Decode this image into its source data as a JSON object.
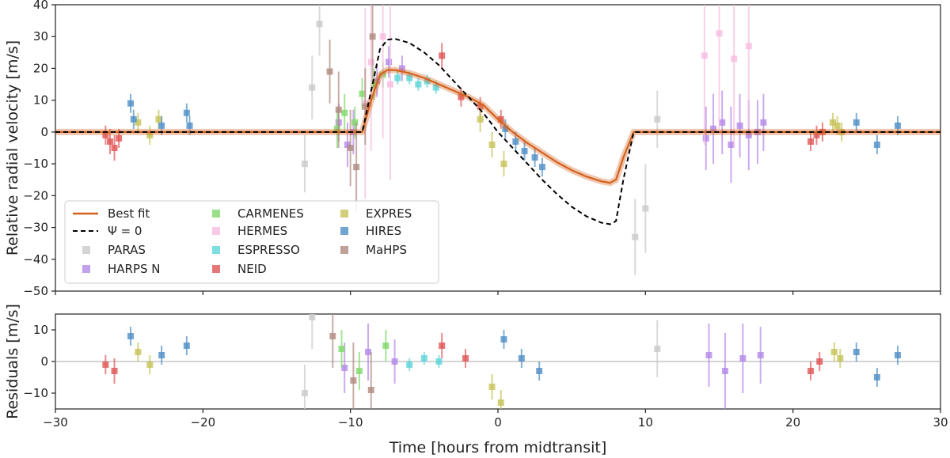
{
  "chart_data": {
    "type": "scatter",
    "xlabel": "Time [hours from midtransit]",
    "xlim": [
      -30,
      30
    ],
    "xticks": [
      -30,
      -20,
      -10,
      0,
      10,
      20,
      30
    ],
    "panels": [
      {
        "name": "main",
        "ylabel": "Relative radial velocity [m/s]",
        "ylim": [
          -50,
          40
        ],
        "yticks": [
          -50,
          -40,
          -30,
          -20,
          -10,
          0,
          10,
          20,
          30,
          40
        ],
        "series": [
          {
            "name": "PARAS",
            "color": "#c9c9c9",
            "x": [
              -13.1,
              -12.6,
              -12.1,
              9.3,
              10.0,
              10.8
            ],
            "y": [
              -10,
              14,
              34,
              -33,
              -24,
              4
            ],
            "err": [
              9,
              10,
              10,
              12,
              14,
              9
            ]
          },
          {
            "name": "HARPS N",
            "color": "#b388e8",
            "x": [
              -10.8,
              -10.2,
              -9.8,
              -8.2,
              -7.4,
              -6.5,
              14.1,
              14.6,
              15.2,
              15.8,
              16.4,
              17.0,
              17.6,
              18.0
            ],
            "y": [
              3,
              -4,
              0,
              16,
              22,
              20,
              -2,
              1,
              3,
              -4,
              2,
              -1,
              0,
              3
            ],
            "err": [
              6,
              7,
              7,
              5,
              5,
              4,
              10,
              11,
              10,
              12,
              10,
              11,
              10,
              9
            ]
          },
          {
            "name": "CARMENES",
            "color": "#7fd86a",
            "x": [
              -10.9,
              -10.4,
              -9.7,
              -9.2,
              -8.4,
              -7.8
            ],
            "y": [
              1,
              6,
              3,
              12,
              15,
              18
            ],
            "err": [
              6,
              6,
              5,
              5,
              5,
              4
            ]
          },
          {
            "name": "HERMES",
            "color": "#f6bde0",
            "x": [
              -9.0,
              -8.6,
              -7.8,
              -7.3,
              14.0,
              15.0,
              16.0,
              17.0
            ],
            "y": [
              9,
              22,
              30,
              15,
              24,
              31,
              23,
              27
            ],
            "err": [
              30,
              28,
              32,
              30,
              28,
              30,
              28,
              26
            ]
          },
          {
            "name": "ESPRESSO",
            "color": "#5cd4d8",
            "x": [
              -6.8,
              -6.0,
              -5.4,
              -4.8,
              -4.2
            ],
            "y": [
              17,
              17,
              15,
              16,
              14
            ],
            "err": [
              2,
              2,
              2,
              2,
              2
            ]
          },
          {
            "name": "NEID",
            "color": "#e05555",
            "x": [
              -26.6,
              -26.3,
              -26.0,
              -25.7,
              -3.8,
              -2.5,
              -1.2,
              0.2,
              21.2,
              21.6,
              22.0
            ],
            "y": [
              -1,
              -3,
              -5,
              -2,
              24,
              11,
              8,
              4,
              -3,
              -1,
              0
            ],
            "err": [
              3,
              4,
              4,
              3,
              4,
              3,
              3,
              3,
              3,
              3,
              3
            ]
          },
          {
            "name": "EXPRES",
            "color": "#c6c357",
            "x": [
              -24.4,
              -23.6,
              -23.0,
              -1.2,
              -0.4,
              0.4,
              22.7,
              23.0,
              23.3
            ],
            "y": [
              3,
              -1,
              4,
              4,
              -4,
              -10,
              3,
              2,
              0
            ],
            "err": [
              3,
              3,
              3,
              4,
              4,
              4,
              3,
              3,
              3
            ]
          },
          {
            "name": "HIRES",
            "color": "#4f8fc5",
            "x": [
              -24.9,
              -24.7,
              -22.8,
              -21.1,
              -20.9,
              0.5,
              1.2,
              1.8,
              2.5,
              3.0,
              24.3,
              25.7,
              27.1
            ],
            "y": [
              9,
              4,
              2,
              6,
              2,
              1,
              -3,
              -6,
              -8,
              -11,
              3,
              -4,
              2
            ],
            "err": [
              3,
              3,
              3,
              3,
              3,
              3,
              3,
              3,
              3,
              3,
              3,
              3,
              3
            ]
          },
          {
            "name": "MaHPS",
            "color": "#b08a80",
            "x": [
              -11.4,
              -10.8,
              -10.0,
              -9.6,
              -9.0,
              -8.5
            ],
            "y": [
              19,
              7,
              -5,
              -11,
              8,
              30
            ],
            "err": [
              10,
              12,
              12,
              14,
              12,
              14
            ]
          }
        ],
        "best_fit": {
          "name": "Best fit",
          "color": "#d4601c",
          "x": [
            -30,
            -9.2,
            -8.6,
            -8.0,
            -7.5,
            -7.0,
            -6.0,
            -5.0,
            -4.0,
            -3.0,
            -2.0,
            -1.0,
            0.0,
            1.0,
            2.0,
            3.0,
            4.0,
            5.0,
            6.0,
            7.0,
            7.6,
            8.0,
            8.5,
            9.2,
            30
          ],
          "y": [
            0,
            0,
            10,
            18,
            19.5,
            19.5,
            18.5,
            17,
            15,
            13,
            11,
            8.5,
            4,
            0,
            -3.5,
            -6.5,
            -9.5,
            -12,
            -14,
            -15.5,
            -16,
            -15,
            -8,
            0,
            0
          ]
        },
        "psi_zero": {
          "name": "Ψ = 0",
          "color": "#000000",
          "x": [
            -30,
            -9.2,
            -8.5,
            -8.0,
            -7.5,
            -7.0,
            -6.0,
            -5.0,
            -4.0,
            -3.0,
            -2.0,
            -1.0,
            0.0,
            1.0,
            2.0,
            3.0,
            4.0,
            5.0,
            6.0,
            7.0,
            7.6,
            8.0,
            8.5,
            9.2,
            30
          ],
          "y": [
            0,
            0,
            15,
            26,
            29,
            29.3,
            28,
            25,
            21,
            16,
            11,
            6,
            0,
            -5,
            -10,
            -15,
            -19.5,
            -23.5,
            -26.5,
            -28.5,
            -29,
            -28,
            -15,
            0,
            0
          ]
        },
        "legend_position": "lower-left"
      },
      {
        "name": "residuals",
        "ylabel": "Residuals [m/s]",
        "ylim": [
          -15,
          15
        ],
        "yticks": [
          -10,
          0,
          10
        ],
        "zero_line": true,
        "series": [
          {
            "name": "PARAS",
            "color": "#c9c9c9",
            "x": [
              -13.1,
              -12.6,
              10.8
            ],
            "y": [
              -10,
              14,
              4
            ],
            "err": [
              9,
              10,
              9
            ]
          },
          {
            "name": "HARPS N",
            "color": "#b388e8",
            "x": [
              -10.4,
              -8.8,
              -7.0,
              14.3,
              15.4,
              16.6,
              17.8
            ],
            "y": [
              -2,
              3,
              0,
              2,
              -3,
              1,
              2
            ],
            "err": [
              8,
              9,
              7,
              10,
              12,
              11,
              9
            ]
          },
          {
            "name": "CARMENES",
            "color": "#7fd86a",
            "x": [
              -10.6,
              -9.4,
              -7.6
            ],
            "y": [
              4,
              -3,
              5
            ],
            "err": [
              6,
              6,
              5
            ]
          },
          {
            "name": "ESPRESSO",
            "color": "#5cd4d8",
            "x": [
              -6.0,
              -5.0,
              -4.0
            ],
            "y": [
              -1,
              1,
              0
            ],
            "err": [
              2,
              2,
              2
            ]
          },
          {
            "name": "NEID",
            "color": "#e05555",
            "x": [
              -26.6,
              -26.0,
              -3.8,
              -2.2,
              21.2,
              21.8
            ],
            "y": [
              -1,
              -3,
              5,
              1,
              -3,
              0
            ],
            "err": [
              3,
              4,
              4,
              3,
              3,
              3
            ]
          },
          {
            "name": "EXPRES",
            "color": "#c6c357",
            "x": [
              -24.4,
              -23.6,
              -0.4,
              0.2,
              22.8,
              23.2
            ],
            "y": [
              3,
              -1,
              -8,
              -13,
              3,
              1
            ],
            "err": [
              3,
              3,
              4,
              4,
              3,
              3
            ]
          },
          {
            "name": "HIRES",
            "color": "#4f8fc5",
            "x": [
              -24.9,
              -22.8,
              -21.1,
              0.4,
              1.6,
              2.8,
              24.3,
              25.7,
              27.1
            ],
            "y": [
              8,
              2,
              5,
              7,
              1,
              -3,
              3,
              -5,
              2
            ],
            "err": [
              3,
              3,
              3,
              3,
              3,
              3,
              3,
              3,
              3
            ]
          },
          {
            "name": "MaHPS",
            "color": "#b08a80",
            "x": [
              -11.2,
              -9.8,
              -8.6
            ],
            "y": [
              8,
              -6,
              -9
            ],
            "err": [
              10,
              12,
              12
            ]
          }
        ]
      }
    ]
  }
}
